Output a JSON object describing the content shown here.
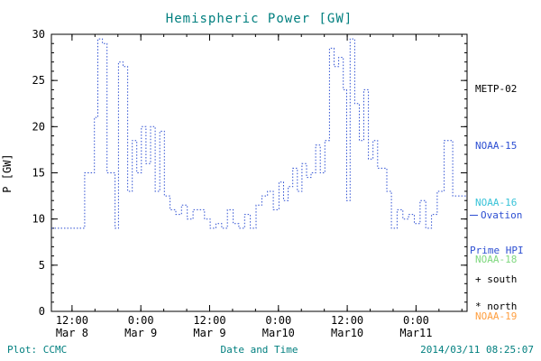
{
  "title": "Hemispheric Power [GW]",
  "colors": {
    "teal": "#007f7f",
    "blue": "#2d4fd2",
    "cyan": "#38c3d8",
    "green": "#7fd87f",
    "orange": "#ff9f40",
    "black": "#000000",
    "axis": "#000000"
  },
  "legend": {
    "items": [
      {
        "label": "METP-02",
        "color": "black"
      },
      {
        "label": "NOAA-15",
        "color": "blue"
      },
      {
        "label": "NOAA-16",
        "color": "cyan"
      },
      {
        "label": "NOAA-18",
        "color": "green"
      },
      {
        "label": "NOAA-19",
        "color": "orange"
      }
    ]
  },
  "annotations": {
    "ovation_line1": "Ovation",
    "ovation_line2": "Prime HPI",
    "south_marker": "+ south",
    "north_marker": "* north"
  },
  "footer": {
    "plot_source": "Plot: CCMC",
    "xaxis_title": "Date and Time",
    "timestamp": "2014/03/11 08:25:07"
  },
  "chart_data": {
    "type": "line",
    "subtype": "step-histogram",
    "line_style": "dotted",
    "series_name": "Ovation Prime Hemispheric Power Index",
    "title": "Hemispheric Power [GW]",
    "xlabel": "Date and Time",
    "ylabel": "P [GW]",
    "ylim": [
      0,
      30
    ],
    "yticks": [
      0,
      5,
      10,
      15,
      20,
      25,
      30
    ],
    "y_minor_step": 1,
    "x_hours_range": [
      8.4,
      80.9
    ],
    "x_minor_step": 4,
    "grid": false,
    "legend_position": "right-outside",
    "xticks": [
      {
        "t": 12,
        "time": "12:00",
        "date": "Mar 8"
      },
      {
        "t": 24,
        "time": "0:00",
        "date": "Mar 9"
      },
      {
        "t": 36,
        "time": "12:00",
        "date": "Mar 9"
      },
      {
        "t": 48,
        "time": "0:00",
        "date": "Mar10"
      },
      {
        "t": 60,
        "time": "12:00",
        "date": "Mar10"
      },
      {
        "t": 72,
        "time": "0:00",
        "date": "Mar11"
      }
    ],
    "points_units": "[hours since Mar 8 00:00 UT, GW]",
    "points": [
      [
        8.4,
        9
      ],
      [
        10,
        9
      ],
      [
        11.6,
        9
      ],
      [
        13.2,
        9
      ],
      [
        14.2,
        15
      ],
      [
        15.2,
        15
      ],
      [
        15.9,
        21
      ],
      [
        16.5,
        29.5
      ],
      [
        17.3,
        29
      ],
      [
        18.1,
        15
      ],
      [
        18.9,
        15
      ],
      [
        19.5,
        9
      ],
      [
        20.1,
        27
      ],
      [
        20.9,
        26.5
      ],
      [
        21.7,
        13
      ],
      [
        22.5,
        18.5
      ],
      [
        23.3,
        15
      ],
      [
        24.1,
        20
      ],
      [
        24.9,
        16
      ],
      [
        25.7,
        20
      ],
      [
        26.5,
        13
      ],
      [
        27.3,
        19.5
      ],
      [
        28.1,
        12.5
      ],
      [
        29.1,
        11
      ],
      [
        30.1,
        10.5
      ],
      [
        31.1,
        11.5
      ],
      [
        32.1,
        10
      ],
      [
        33.1,
        11
      ],
      [
        34.1,
        11
      ],
      [
        35.1,
        10
      ],
      [
        36.1,
        9
      ],
      [
        37.1,
        9.5
      ],
      [
        38.1,
        9
      ],
      [
        39.1,
        11
      ],
      [
        40.1,
        9.5
      ],
      [
        41.1,
        9
      ],
      [
        42.1,
        10.5
      ],
      [
        43.1,
        9
      ],
      [
        44.1,
        11.5
      ],
      [
        45.1,
        12.5
      ],
      [
        46.1,
        13
      ],
      [
        47.1,
        11
      ],
      [
        48.1,
        14
      ],
      [
        48.9,
        12
      ],
      [
        49.7,
        13.5
      ],
      [
        50.5,
        15.5
      ],
      [
        51.3,
        13
      ],
      [
        52.1,
        16
      ],
      [
        52.9,
        14.5
      ],
      [
        53.7,
        15
      ],
      [
        54.5,
        18
      ],
      [
        55.3,
        15
      ],
      [
        56.1,
        18.5
      ],
      [
        56.9,
        28.5
      ],
      [
        57.7,
        26.5
      ],
      [
        58.5,
        27.5
      ],
      [
        59.3,
        24
      ],
      [
        59.9,
        12
      ],
      [
        60.5,
        29.5
      ],
      [
        61.3,
        22.5
      ],
      [
        62.1,
        18.5
      ],
      [
        62.9,
        24
      ],
      [
        63.7,
        16.5
      ],
      [
        64.5,
        18.5
      ],
      [
        65.3,
        15.5
      ],
      [
        66.1,
        15.5
      ],
      [
        66.9,
        13
      ],
      [
        67.7,
        9
      ],
      [
        68.7,
        11
      ],
      [
        69.7,
        10
      ],
      [
        70.7,
        10.5
      ],
      [
        71.7,
        9.5
      ],
      [
        72.7,
        12
      ],
      [
        73.7,
        9
      ],
      [
        74.7,
        10.5
      ],
      [
        75.7,
        13
      ],
      [
        76.9,
        18.5
      ],
      [
        78.4,
        12.5
      ],
      [
        80.9,
        12.5
      ]
    ]
  }
}
